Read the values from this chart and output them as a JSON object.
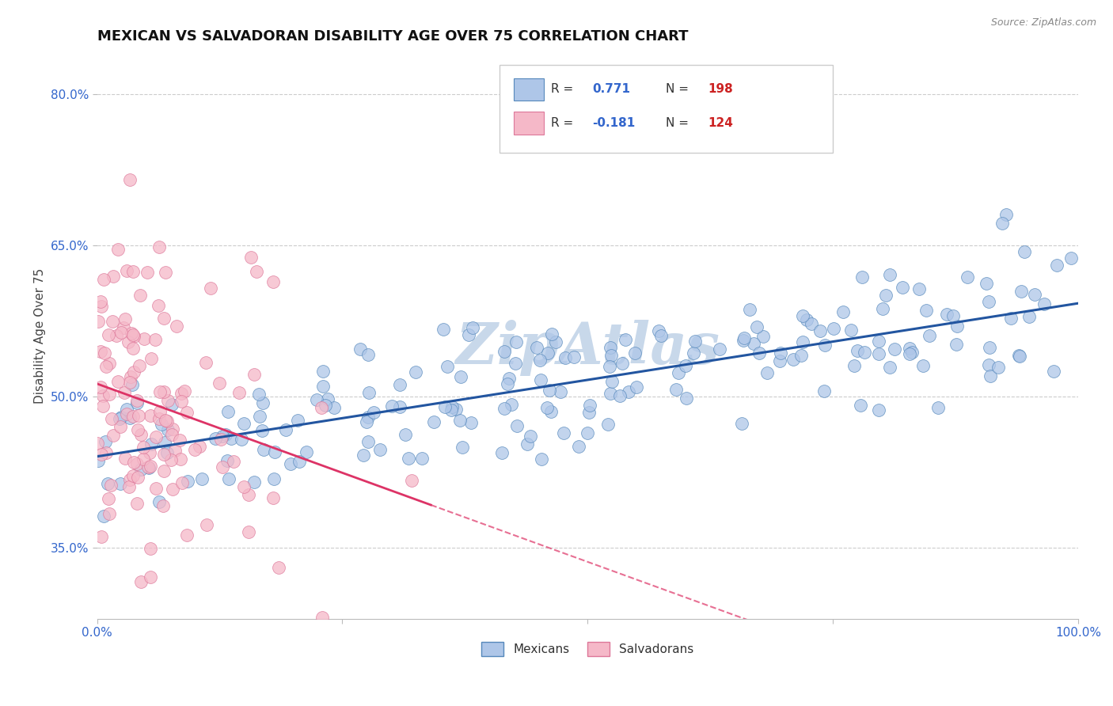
{
  "title": "MEXICAN VS SALVADORAN DISABILITY AGE OVER 75 CORRELATION CHART",
  "source_text": "Source: ZipAtlas.com",
  "ylabel": "Disability Age Over 75",
  "xlim": [
    0.0,
    1.0
  ],
  "ylim": [
    0.28,
    0.84
  ],
  "yticks": [
    0.35,
    0.5,
    0.65,
    0.8
  ],
  "ytick_labels": [
    "35.0%",
    "50.0%",
    "65.0%",
    "80.0%"
  ],
  "xticks": [
    0.0,
    0.25,
    0.5,
    0.75,
    1.0
  ],
  "xtick_labels": [
    "0.0%",
    "",
    "",
    "",
    "100.0%"
  ],
  "mexican_R": 0.771,
  "mexican_N": 198,
  "salvadoran_R": -0.181,
  "salvadoran_N": 124,
  "blue_dot_color": "#aec6e8",
  "blue_edge_color": "#5588bb",
  "blue_line_color": "#2255a0",
  "pink_dot_color": "#f5b8c8",
  "pink_edge_color": "#dd7799",
  "pink_line_color": "#dd3366",
  "background_color": "#ffffff",
  "grid_color": "#cccccc",
  "watermark_color": "#c8d8ea",
  "title_fontsize": 13,
  "axis_label_fontsize": 11,
  "tick_fontsize": 11,
  "legend_color": "#3366cc",
  "legend_n_color": "#cc2222"
}
